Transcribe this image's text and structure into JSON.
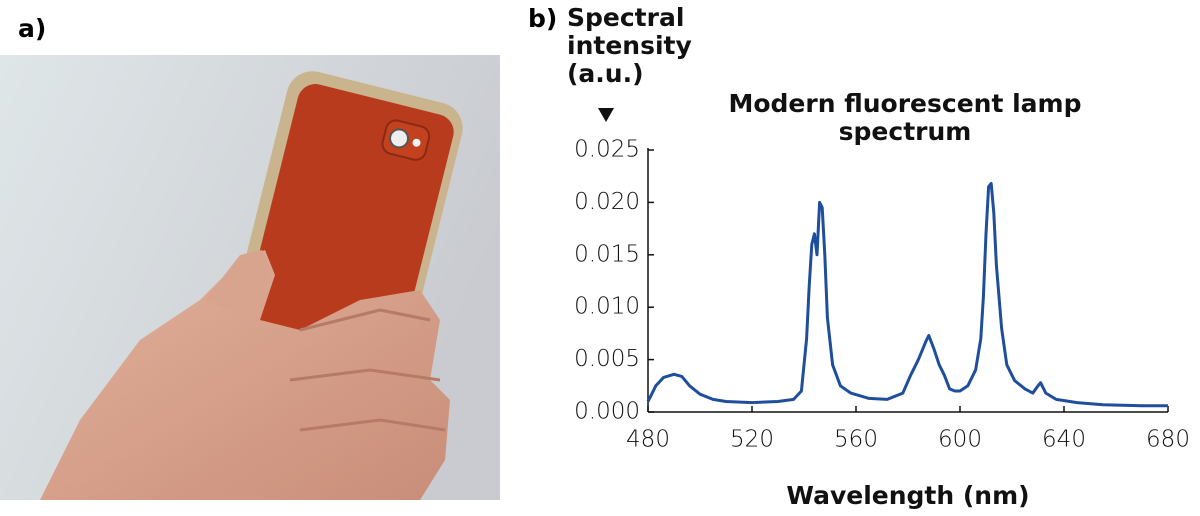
{
  "panel_labels": [
    "a)",
    "b)"
  ],
  "chart_data": {
    "type": "line",
    "title": "Modern fluorescent lamp spectrum",
    "y_label": "Spectral intensity (a.u.)",
    "x_label": "Wavelength (nm)",
    "color": "#1f4e9c",
    "x": [
      480,
      483,
      486,
      490,
      493,
      496,
      500,
      505,
      510,
      520,
      530,
      536,
      539,
      541,
      542,
      543,
      544,
      545,
      546,
      547,
      548,
      549,
      551,
      554,
      558,
      565,
      572,
      578,
      581,
      584,
      587,
      588,
      590,
      592,
      594,
      596,
      598,
      600,
      603,
      606,
      608,
      609,
      610,
      611,
      612,
      613,
      614,
      616,
      618,
      621,
      625,
      628,
      630,
      631,
      633,
      637,
      645,
      655,
      670,
      680
    ],
    "values": [
      0.001,
      0.0025,
      0.0033,
      0.0036,
      0.0034,
      0.0025,
      0.0017,
      0.0012,
      0.001,
      0.0009,
      0.001,
      0.0012,
      0.002,
      0.007,
      0.012,
      0.016,
      0.017,
      0.015,
      0.02,
      0.0195,
      0.015,
      0.009,
      0.0045,
      0.0025,
      0.0018,
      0.0013,
      0.0012,
      0.0018,
      0.0035,
      0.005,
      0.0068,
      0.0073,
      0.006,
      0.0045,
      0.0035,
      0.0022,
      0.002,
      0.002,
      0.0025,
      0.004,
      0.007,
      0.011,
      0.017,
      0.0215,
      0.0218,
      0.019,
      0.014,
      0.008,
      0.0045,
      0.003,
      0.0022,
      0.0018,
      0.0025,
      0.0028,
      0.0018,
      0.0012,
      0.0009,
      0.0007,
      0.0006,
      0.0006
    ],
    "xlim": [
      480,
      680
    ],
    "xticks": [
      480,
      520,
      560,
      600,
      640,
      680
    ],
    "ylim": [
      0,
      0.025
    ],
    "yticks": [
      {
        "value": 0,
        "label": "0.000"
      },
      0.005,
      {
        "value": 0.01,
        "label": "0.010"
      },
      0.015,
      {
        "value": 0.02,
        "label": "0.020"
      },
      0.025
    ]
  }
}
